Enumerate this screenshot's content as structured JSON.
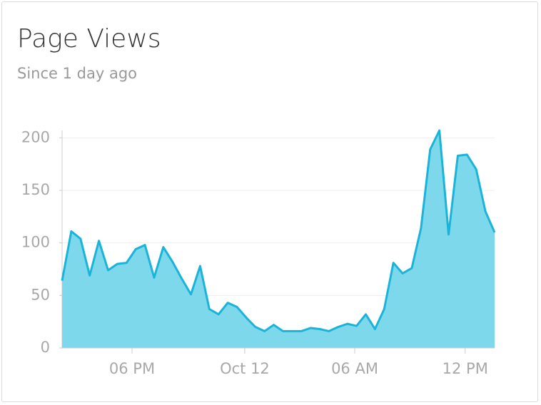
{
  "chart_data": {
    "type": "area",
    "title": "Page Views",
    "subtitle": "Since 1 day ago",
    "x": [
      0,
      1,
      2,
      3,
      4,
      5,
      6,
      7,
      8,
      9,
      10,
      11,
      12,
      13,
      14,
      15,
      16,
      17,
      18,
      19,
      20,
      21,
      22,
      23,
      24,
      25,
      26,
      27,
      28,
      29,
      30,
      31,
      32,
      33,
      34,
      35,
      36,
      37,
      38,
      39,
      40,
      41,
      42,
      43,
      44,
      45,
      46,
      47
    ],
    "values": [
      64,
      111,
      104,
      69,
      102,
      74,
      80,
      81,
      94,
      98,
      67,
      96,
      82,
      66,
      51,
      78,
      37,
      32,
      43,
      39,
      29,
      20,
      16,
      22,
      16,
      16,
      16,
      19,
      18,
      16,
      20,
      23,
      21,
      32,
      18,
      37,
      81,
      71,
      76,
      114,
      189,
      207,
      108,
      183,
      184,
      170,
      130,
      110
    ],
    "xlim": [
      0,
      47
    ],
    "xticks": [
      {
        "value": 7.6,
        "label": "06 PM"
      },
      {
        "value": 19.85,
        "label": "Oct 12"
      },
      {
        "value": 31.8,
        "label": "06 AM"
      },
      {
        "value": 43.8,
        "label": "12 PM"
      }
    ],
    "ylim": [
      0,
      207
    ],
    "yticks": [
      0,
      50,
      100,
      150,
      200
    ],
    "color": "#1ab4d8",
    "fill": "#7dd8ec",
    "grid": true
  }
}
